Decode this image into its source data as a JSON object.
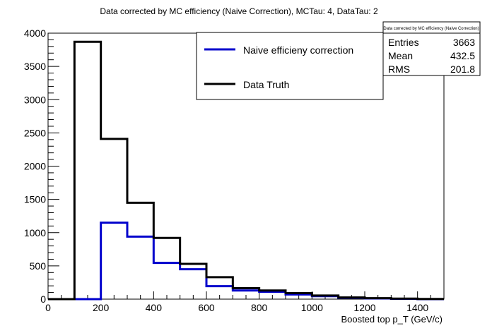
{
  "chart_data": {
    "type": "line",
    "title": "Data corrected by MC efficiency (Naive Correction), MCTau: 4, DataTau: 2",
    "xlabel": "Boosted top p_T (GeV/c)",
    "ylabel": "",
    "xlim": [
      0,
      1500
    ],
    "ylim": [
      0,
      4000
    ],
    "x_ticks": [
      "0",
      "200",
      "400",
      "600",
      "800",
      "1000",
      "1200",
      "1400"
    ],
    "y_ticks": [
      "0",
      "500",
      "1000",
      "1500",
      "2000",
      "2500",
      "3000",
      "3500",
      "4000"
    ],
    "bin_edges": [
      0,
      100,
      200,
      300,
      400,
      500,
      600,
      700,
      800,
      900,
      1000,
      1100,
      1200,
      1300,
      1400,
      1500
    ],
    "series": [
      {
        "name": "Naive efficieny correction",
        "color": "#0000cc",
        "values": [
          0,
          0,
          1150,
          940,
          545,
          450,
          195,
          130,
          110,
          70,
          45,
          20,
          10,
          5,
          0
        ]
      },
      {
        "name": "Data Truth",
        "color": "#000000",
        "values": [
          0,
          3870,
          2410,
          1450,
          920,
          530,
          330,
          165,
          130,
          90,
          55,
          25,
          15,
          8,
          3
        ]
      }
    ],
    "legend_position": "top-right",
    "stats": {
      "title": "Data corrected by MC efficiency (Naive Correction)",
      "rows": [
        {
          "label": "Entries",
          "value": "3663"
        },
        {
          "label": "Mean",
          "value": "432.5"
        },
        {
          "label": "RMS",
          "value": "201.8"
        }
      ]
    }
  }
}
